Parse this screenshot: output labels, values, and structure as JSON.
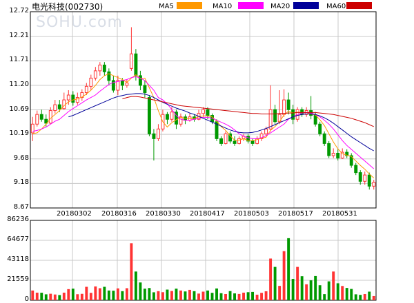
{
  "stock_title": "电光科技(002730)",
  "watermark": "SOHU.com",
  "legend": [
    {
      "label": "MA5",
      "color": "#ff9900"
    },
    {
      "label": "MA10",
      "color": "#ff00ff"
    },
    {
      "label": "MA20",
      "color": "#000099"
    },
    {
      "label": "MA60",
      "color": "#cc0000"
    }
  ],
  "price_axis_labels": [
    "12.72",
    "12.21",
    "11.71",
    "11.20",
    "10.69",
    "10.19",
    "9.68",
    "9.18",
    "8.67"
  ],
  "volume_axis_labels": [
    "86236",
    "64677",
    "43118",
    "21559",
    "0"
  ],
  "date_labels": [
    "20180302",
    "20180316",
    "20180330",
    "20180417",
    "20180503",
    "20180517",
    "20180531"
  ],
  "colors": {
    "up": "#ff3333",
    "down": "#009900",
    "grid": "#c8c8c8",
    "axis": "#000000"
  },
  "chart_data": {
    "type": "candlestick",
    "price_ylim": [
      8.67,
      12.72
    ],
    "volume_ylim": [
      0,
      86236
    ],
    "candles": [
      [
        10.22,
        10.4,
        10.05,
        10.55
      ],
      [
        10.4,
        10.6,
        10.35,
        10.68
      ],
      [
        10.6,
        10.5,
        10.45,
        10.7
      ],
      [
        10.5,
        10.42,
        10.35,
        10.6
      ],
      [
        10.42,
        10.68,
        10.4,
        10.75
      ],
      [
        10.68,
        10.8,
        10.62,
        10.9
      ],
      [
        10.8,
        10.72,
        10.65,
        10.9
      ],
      [
        10.72,
        10.9,
        10.7,
        11.05
      ],
      [
        10.9,
        11.0,
        10.8,
        11.1
      ],
      [
        11.0,
        10.85,
        10.78,
        11.08
      ],
      [
        10.85,
        10.95,
        10.8,
        11.05
      ],
      [
        10.95,
        11.05,
        10.88,
        11.12
      ],
      [
        11.05,
        11.18,
        11.0,
        11.25
      ],
      [
        11.18,
        11.35,
        11.1,
        11.42
      ],
      [
        11.35,
        11.5,
        11.3,
        11.58
      ],
      [
        11.5,
        11.62,
        11.4,
        11.68
      ],
      [
        11.62,
        11.48,
        11.4,
        11.68
      ],
      [
        11.48,
        11.3,
        11.2,
        11.55
      ],
      [
        11.3,
        11.1,
        11.05,
        11.4
      ],
      [
        11.1,
        11.3,
        11.0,
        11.4
      ],
      [
        11.3,
        11.2,
        11.1,
        11.35
      ],
      [
        11.2,
        11.25,
        11.15,
        11.32
      ],
      [
        11.55,
        11.85,
        11.5,
        12.4
      ],
      [
        11.85,
        11.4,
        11.3,
        11.95
      ],
      [
        11.4,
        11.2,
        11.1,
        11.5
      ],
      [
        11.2,
        11.05,
        10.95,
        11.3
      ],
      [
        10.95,
        10.2,
        10.15,
        11.0
      ],
      [
        10.2,
        10.1,
        9.65,
        10.3
      ],
      [
        10.1,
        10.3,
        10.05,
        10.4
      ],
      [
        10.3,
        10.6,
        10.25,
        10.7
      ],
      [
        10.6,
        10.5,
        10.4,
        10.65
      ],
      [
        10.5,
        10.65,
        10.45,
        10.75
      ],
      [
        10.65,
        10.4,
        10.3,
        10.7
      ],
      [
        10.4,
        10.55,
        10.35,
        10.62
      ],
      [
        10.55,
        10.48,
        10.4,
        10.6
      ],
      [
        10.48,
        10.55,
        10.45,
        10.62
      ],
      [
        10.55,
        10.5,
        10.45,
        10.6
      ],
      [
        10.5,
        10.62,
        10.48,
        10.7
      ],
      [
        10.62,
        10.7,
        10.55,
        10.75
      ],
      [
        10.7,
        10.58,
        10.5,
        10.75
      ],
      [
        10.58,
        10.45,
        10.4,
        10.62
      ],
      [
        10.45,
        10.1,
        10.05,
        10.5
      ],
      [
        10.1,
        10.0,
        9.95,
        10.15
      ],
      [
        10.0,
        10.2,
        9.98,
        10.25
      ],
      [
        10.2,
        10.05,
        10.0,
        10.25
      ],
      [
        10.05,
        10.0,
        9.95,
        10.15
      ],
      [
        10.0,
        10.1,
        9.98,
        10.15
      ],
      [
        10.1,
        10.15,
        10.05,
        10.2
      ],
      [
        10.15,
        10.05,
        10.0,
        10.2
      ],
      [
        10.05,
        10.0,
        9.95,
        10.1
      ],
      [
        10.0,
        10.1,
        9.98,
        10.15
      ],
      [
        10.1,
        10.2,
        10.05,
        10.25
      ],
      [
        10.2,
        10.3,
        10.15,
        10.35
      ],
      [
        10.3,
        10.7,
        10.25,
        11.2
      ],
      [
        10.7,
        10.45,
        10.4,
        10.8
      ],
      [
        10.45,
        10.6,
        10.4,
        11.1
      ],
      [
        10.6,
        10.9,
        10.55,
        11.12
      ],
      [
        10.9,
        10.7,
        10.6,
        11.05
      ],
      [
        10.7,
        10.5,
        10.4,
        10.8
      ],
      [
        10.5,
        10.7,
        10.45,
        10.75
      ],
      [
        10.7,
        10.6,
        10.55,
        10.75
      ],
      [
        10.6,
        10.68,
        10.55,
        10.75
      ],
      [
        10.68,
        10.58,
        10.5,
        10.98
      ],
      [
        10.58,
        10.4,
        10.35,
        10.65
      ],
      [
        10.4,
        10.2,
        10.15,
        10.45
      ],
      [
        10.2,
        10.0,
        9.95,
        10.25
      ],
      [
        10.0,
        9.75,
        9.7,
        10.05
      ],
      [
        9.75,
        9.8,
        9.7,
        9.9
      ],
      [
        9.8,
        9.7,
        9.65,
        9.88
      ],
      [
        9.7,
        9.82,
        9.68,
        9.9
      ],
      [
        9.82,
        9.75,
        9.7,
        9.88
      ],
      [
        9.75,
        9.55,
        9.5,
        9.8
      ],
      [
        9.55,
        9.4,
        9.35,
        9.6
      ],
      [
        9.4,
        9.22,
        9.15,
        9.45
      ],
      [
        9.22,
        9.35,
        9.15,
        9.42
      ],
      [
        9.35,
        9.12,
        9.05,
        9.4
      ],
      [
        9.12,
        9.2,
        9.05,
        9.25
      ]
    ],
    "volumes": [
      10500,
      8200,
      8100,
      6400,
      7000,
      6200,
      5600,
      8200,
      12000,
      12500,
      6500,
      6900,
      14500,
      8000,
      14900,
      13000,
      14500,
      10500,
      10300,
      12800,
      9800,
      13000,
      61500,
      31000,
      19200,
      12500,
      13200,
      8600,
      9800,
      8700,
      11500,
      10000,
      12500,
      10500,
      9500,
      11200,
      9800,
      7200,
      9300,
      10500,
      8000,
      12700,
      7600,
      6700,
      9900,
      7400,
      6800,
      8200,
      8700,
      9000,
      6000,
      8000,
      9700,
      45000,
      36000,
      15500,
      53000,
      67000,
      23000,
      36000,
      25900,
      17200,
      21500,
      26100,
      16200,
      6600,
      20400,
      31000,
      18300,
      15400,
      13300,
      12200,
      6400,
      5800,
      6700,
      9300,
      4500
    ],
    "moving_averages": [
      {
        "name": "MA5",
        "color": "#ff9900",
        "values": [
          10.2,
          10.22,
          10.3,
          10.4,
          10.52,
          10.6,
          10.68,
          10.78,
          10.86,
          10.9,
          10.92,
          10.96,
          11.02,
          11.1,
          11.2,
          11.32,
          11.4,
          11.44,
          11.4,
          11.36,
          11.32,
          11.26,
          11.35,
          11.42,
          11.34,
          11.35,
          11.15,
          10.95,
          10.68,
          10.45,
          10.34,
          10.43,
          10.49,
          10.54,
          10.52,
          10.51,
          10.52,
          10.55,
          10.57,
          10.57,
          10.55,
          10.46,
          10.35,
          10.27,
          10.16,
          10.07,
          10.07,
          10.1,
          10.06,
          10.06,
          10.08,
          10.11,
          10.13,
          10.27,
          10.35,
          10.45,
          10.59,
          10.67,
          10.63,
          10.65,
          10.64,
          10.64,
          10.61,
          10.59,
          10.49,
          10.37,
          10.2,
          10.03,
          9.89,
          9.79,
          9.76,
          9.73,
          9.64,
          9.55,
          9.47,
          9.37,
          9.29
        ]
      },
      {
        "name": "MA10",
        "color": "#ff00ff",
        "values": [
          10.25,
          10.27,
          10.3,
          10.34,
          10.4,
          10.46,
          10.5,
          10.58,
          10.66,
          10.72,
          10.78,
          10.84,
          10.9,
          10.95,
          11.0,
          11.08,
          11.15,
          11.22,
          11.26,
          11.28,
          11.3,
          11.32,
          11.36,
          11.38,
          11.35,
          11.3,
          11.2,
          11.1,
          10.95,
          10.9,
          10.82,
          10.7,
          10.58,
          10.5,
          10.48,
          10.48,
          10.5,
          10.52,
          10.54,
          10.54,
          10.52,
          10.48,
          10.44,
          10.4,
          10.35,
          10.28,
          10.2,
          10.15,
          10.12,
          10.1,
          10.1,
          10.12,
          10.16,
          10.22,
          10.28,
          10.34,
          10.4,
          10.5,
          10.55,
          10.6,
          10.63,
          10.64,
          10.63,
          10.6,
          10.55,
          10.48,
          10.4,
          10.3,
          10.18,
          10.06,
          9.96,
          9.88,
          9.8,
          9.72,
          9.64,
          9.56,
          9.48
        ]
      },
      {
        "name": "MA20",
        "color": "#000099",
        "values": [
          null,
          null,
          null,
          null,
          null,
          null,
          null,
          null,
          10.55,
          10.58,
          10.62,
          10.66,
          10.7,
          10.74,
          10.78,
          10.82,
          10.86,
          10.9,
          10.94,
          10.97,
          10.99,
          11.01,
          11.02,
          11.03,
          11.03,
          11.02,
          10.99,
          10.95,
          10.9,
          10.85,
          10.81,
          10.77,
          10.73,
          10.7,
          10.67,
          10.63,
          10.6,
          10.56,
          10.52,
          10.48,
          10.44,
          10.4,
          10.36,
          10.32,
          10.28,
          10.25,
          10.23,
          10.22,
          10.22,
          10.23,
          10.25,
          10.28,
          10.31,
          10.35,
          10.39,
          10.43,
          10.47,
          10.51,
          10.55,
          10.58,
          10.6,
          10.61,
          10.61,
          10.6,
          10.57,
          10.53,
          10.48,
          10.42,
          10.35,
          10.28,
          10.21,
          10.14,
          10.08,
          10.02,
          9.96,
          9.9,
          9.85
        ]
      },
      {
        "name": "MA60",
        "color": "#cc0000",
        "values": [
          null,
          null,
          null,
          null,
          null,
          null,
          null,
          null,
          null,
          null,
          null,
          null,
          null,
          null,
          null,
          null,
          null,
          null,
          null,
          null,
          10.92,
          10.95,
          10.97,
          10.97,
          10.96,
          10.94,
          10.92,
          10.9,
          10.88,
          10.86,
          10.84,
          10.82,
          10.8,
          10.78,
          10.77,
          10.76,
          10.75,
          10.74,
          10.73,
          10.72,
          10.71,
          10.7,
          10.69,
          10.68,
          10.67,
          10.66,
          10.65,
          10.64,
          10.63,
          10.62,
          10.62,
          10.61,
          10.61,
          10.61,
          10.61,
          10.62,
          10.62,
          10.63,
          10.63,
          10.64,
          10.64,
          10.64,
          10.64,
          10.64,
          10.63,
          10.62,
          10.61,
          10.6,
          10.58,
          10.56,
          10.54,
          10.52,
          10.49,
          10.46,
          10.43,
          10.39,
          10.35
        ]
      }
    ]
  }
}
